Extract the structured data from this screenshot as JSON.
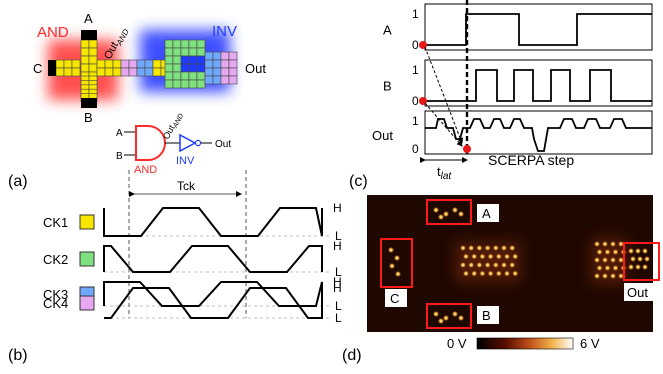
{
  "panel_a": {
    "tag": "(a)",
    "and_label": "AND",
    "inv_label": "INV",
    "in_a": "A",
    "in_b": "B",
    "in_c": "C",
    "out": "Out",
    "out_and_main": "Out",
    "out_and_sub": "AND",
    "schematic": {
      "in_a": "A",
      "in_b": "B",
      "and": "AND",
      "inv": "INV",
      "out": "Out",
      "out_and_main": "Out",
      "out_and_sub": "AND"
    },
    "colors": {
      "and": "#ff2a2a",
      "inv": "#1f3bff",
      "ck1": "#f7e600",
      "ck2": "#7ee07e",
      "ck3": "#6fa8ff",
      "ck4": "#e6a8f0"
    }
  },
  "panel_b": {
    "tag": "(b)",
    "period_label": "Tck",
    "clocks": [
      "CK1",
      "CK2",
      "CK3",
      "CK4"
    ],
    "high": "H",
    "low": "L"
  },
  "panel_c": {
    "tag": "(c)",
    "signals": [
      "A",
      "B",
      "Out"
    ],
    "one": "1",
    "zero": "0",
    "tlat_main": "t",
    "tlat_sub": "lat",
    "xlabel": "SCERPA step"
  },
  "panel_d": {
    "tag": "(d)",
    "labels": {
      "a": "A",
      "b": "B",
      "c": "C",
      "out": "Out"
    },
    "colorbar_min": "0 V",
    "colorbar_max": "6 V"
  }
}
